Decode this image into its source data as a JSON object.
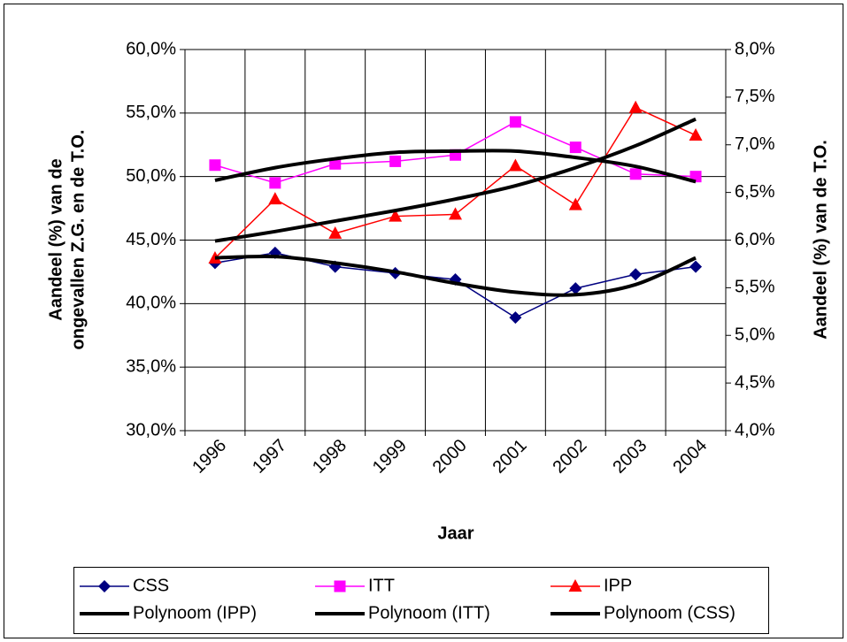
{
  "chart_data": {
    "type": "line",
    "categories": [
      "1996",
      "1997",
      "1998",
      "1999",
      "2000",
      "2001",
      "2002",
      "2003",
      "2004"
    ],
    "xlabel": "Jaar",
    "ylabel": [
      "Aandeel (%) van de",
      "ongevallen Z.G. en de T.O."
    ],
    "y2label": "Aandeel (%) van de T.O.",
    "ylim": [
      30,
      60
    ],
    "yticks": [
      {
        "value": 30,
        "label": "30,0%"
      },
      {
        "value": 35,
        "label": "35,0%"
      },
      {
        "value": 40,
        "label": "40,0%"
      },
      {
        "value": 45,
        "label": "45,0%"
      },
      {
        "value": 50,
        "label": "50,0%"
      },
      {
        "value": 55,
        "label": "55,0%"
      },
      {
        "value": 60,
        "label": "60,0%"
      }
    ],
    "y2lim": [
      4,
      8
    ],
    "y2ticks": [
      {
        "value": 4,
        "label": "4,0%"
      },
      {
        "value": 4.5,
        "label": "4,5%"
      },
      {
        "value": 5,
        "label": "5,0%"
      },
      {
        "value": 5.5,
        "label": "5,5%"
      },
      {
        "value": 6,
        "label": "6,0%"
      },
      {
        "value": 6.5,
        "label": "6,5%"
      },
      {
        "value": 7,
        "label": "7,0%"
      },
      {
        "value": 7.5,
        "label": "7,5%"
      },
      {
        "value": 8,
        "label": "8,0%"
      }
    ],
    "grid": true,
    "legend": "bottom",
    "series": [
      {
        "name": "CSS",
        "color": "#000080",
        "marker": "diamond",
        "values": [
          43.2,
          44.0,
          42.9,
          42.4,
          41.9,
          38.9,
          41.2,
          42.3,
          42.9
        ]
      },
      {
        "name": "ITT",
        "color": "#ff00ff",
        "marker": "square",
        "values": [
          50.9,
          49.5,
          51.0,
          51.2,
          51.7,
          54.3,
          52.3,
          50.2,
          50.0
        ]
      },
      {
        "name": "IPP",
        "color": "#ff0000",
        "marker": "triangle",
        "axis": "y2",
        "values": [
          5.81,
          6.43,
          6.07,
          6.25,
          6.27,
          6.78,
          6.37,
          7.39,
          7.1
        ]
      },
      {
        "name": "Polynoom (IPP)",
        "color": "#000000",
        "axis": "y2",
        "smooth": true,
        "values": [
          5.99,
          6.09,
          6.2,
          6.31,
          6.43,
          6.57,
          6.76,
          6.99,
          7.27
        ]
      },
      {
        "name": "Polynoom (ITT)",
        "color": "#000000",
        "smooth": true,
        "values": [
          49.7,
          50.7,
          51.4,
          51.9,
          52.0,
          52.0,
          51.5,
          50.8,
          49.6
        ]
      },
      {
        "name": "Polynoom (CSS)",
        "color": "#000000",
        "smooth": true,
        "values": [
          43.6,
          43.7,
          43.2,
          42.5,
          41.6,
          40.9,
          40.7,
          41.5,
          43.6
        ]
      }
    ]
  }
}
